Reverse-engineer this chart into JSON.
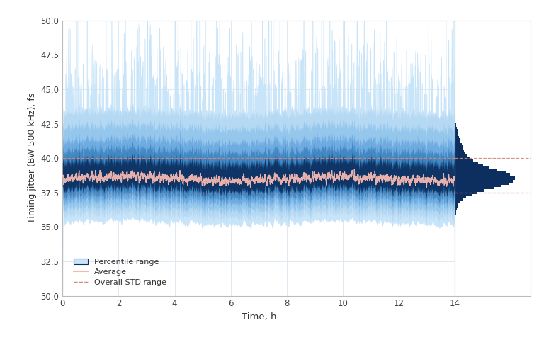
{
  "xlabel": "Time, h",
  "ylabel": "Timing jitter (BW 500 kHz), fs",
  "xlim": [
    0,
    14
  ],
  "ylim": [
    30.0,
    50.0
  ],
  "yticks": [
    30.0,
    32.5,
    35.0,
    37.5,
    40.0,
    42.5,
    45.0,
    47.5,
    50.0
  ],
  "xticks": [
    0,
    2,
    4,
    6,
    8,
    10,
    12,
    14
  ],
  "mean_jitter": 38.5,
  "std_jitter": 0.9,
  "overall_std_upper": 40.0,
  "overall_std_lower": 37.5,
  "light_blue": "#c8e4f8",
  "med_blue": "#5ba3d0",
  "dark_blue": "#0d2f60",
  "avg_line_color": "#f5b8b0",
  "std_line_color": "#d08878",
  "background_color": "#ffffff",
  "grid_color": "#dde4ee",
  "time_hours": 14,
  "n_points": 5000,
  "seed": 42
}
